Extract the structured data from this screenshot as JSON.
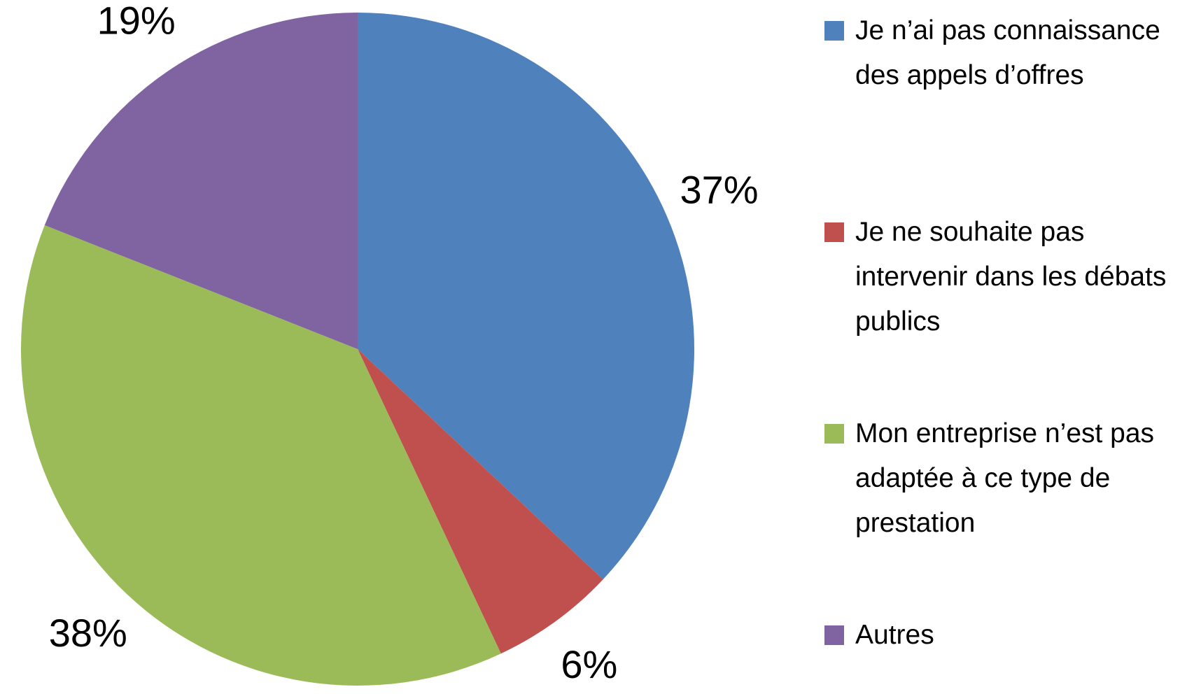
{
  "chart_data": {
    "type": "pie",
    "categories": [
      "Je n’ai pas connaissance des appels d’offres",
      "Je ne souhaite pas intervenir dans les débats publics",
      "Mon entreprise n’est pas adaptée à ce type de prestation",
      "Autres"
    ],
    "values": [
      37,
      6,
      38,
      19
    ],
    "value_labels": [
      "37%",
      "6%",
      "38%",
      "19%"
    ],
    "colors": [
      "#4f81bd",
      "#c0504d",
      "#9bbb59",
      "#8064a2"
    ],
    "legend": "right"
  }
}
